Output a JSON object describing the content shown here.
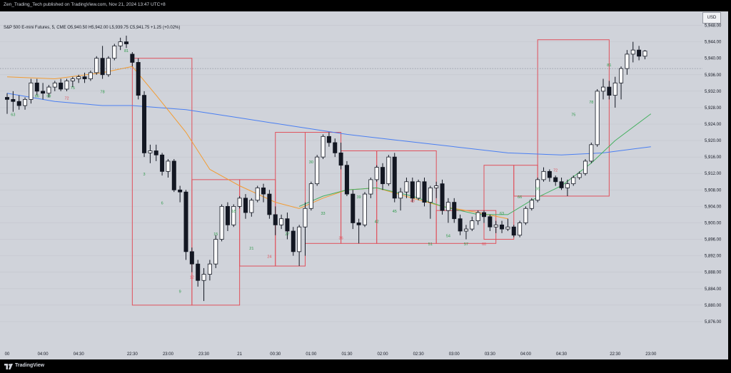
{
  "header": {
    "publisher_text": "Zen_Trading_Tech published on TradingView.com, Nov 21, 2024 13:47 UTC+8"
  },
  "legend": {
    "text": "S&P 500 E-mini Futures, 5, CME  O5,940.50  H5,942.00  L5,939.75  C5,941.75  +1.25 (+0.02%)"
  },
  "price_scale": {
    "currency": "USD"
  },
  "footer": {
    "brand": "TradingView"
  },
  "colors": {
    "background": "#d0d3da",
    "box_stroke": "#e0515c",
    "ma_orange": "#f39c32",
    "ma_green": "#45b060",
    "ma_blue": "#4a7ff2",
    "bar_number_green": "#2e9a4a",
    "bar_number_red": "#e0515c"
  },
  "chart_data": {
    "type": "candlestick",
    "symbol": "S&P 500 E-mini Futures",
    "timeframe": "5",
    "y_axis": {
      "ylim": [
        5872.0,
        5950.0
      ],
      "ticks": [
        "5,948.00",
        "5,944.00",
        "5,940.00",
        "5,936.00",
        "5,932.00",
        "5,928.00",
        "5,924.00",
        "5,920.00",
        "5,916.00",
        "5,912.00",
        "5,908.00",
        "5,904.00",
        "5,900.00",
        "5,896.00",
        "5,892.00",
        "5,888.00",
        "5,884.00",
        "5,880.00",
        "5,876.00"
      ],
      "tick_values": [
        5948,
        5944,
        5940,
        5936,
        5932,
        5928,
        5924,
        5920,
        5916,
        5912,
        5908,
        5904,
        5900,
        5896,
        5892,
        5888,
        5884,
        5880,
        5876
      ]
    },
    "x_axis": {
      "ticks": [
        {
          "label": "00",
          "i": 0
        },
        {
          "label": "04:00",
          "i": 6
        },
        {
          "label": "04:30",
          "i": 12
        },
        {
          "label": "22:30",
          "i": 21
        },
        {
          "label": "23:00",
          "i": 27
        },
        {
          "label": "23:30",
          "i": 33
        },
        {
          "label": "21",
          "i": 39
        },
        {
          "label": "00:30",
          "i": 45
        },
        {
          "label": "01:00",
          "i": 51
        },
        {
          "label": "01:30",
          "i": 57
        },
        {
          "label": "02:00",
          "i": 63
        },
        {
          "label": "02:30",
          "i": 69
        },
        {
          "label": "03:00",
          "i": 75
        },
        {
          "label": "03:30",
          "i": 81
        },
        {
          "label": "04:00",
          "i": 87
        },
        {
          "label": "04:30",
          "i": 93
        },
        {
          "label": "22:30",
          "i": 102
        },
        {
          "label": "23:00",
          "i": 108
        }
      ]
    },
    "candles": [
      [
        5930.5,
        5931.5,
        5926.5,
        5930.0
      ],
      [
        5930.0,
        5932.0,
        5927.0,
        5929.5
      ],
      [
        5929.5,
        5931.0,
        5927.5,
        5928.5
      ],
      [
        5928.5,
        5930.5,
        5927.5,
        5930.0
      ],
      [
        5930.0,
        5935.0,
        5929.0,
        5934.0
      ],
      [
        5934.0,
        5935.0,
        5931.0,
        5932.0
      ],
      [
        5932.0,
        5934.0,
        5930.0,
        5931.5
      ],
      [
        5931.5,
        5933.5,
        5930.5,
        5933.0
      ],
      [
        5933.0,
        5934.5,
        5932.0,
        5934.0
      ],
      [
        5934.0,
        5935.0,
        5932.0,
        5932.5
      ],
      [
        5932.5,
        5935.0,
        5932.0,
        5934.5
      ],
      [
        5934.5,
        5935.5,
        5933.0,
        5935.0
      ],
      [
        5935.0,
        5936.0,
        5934.0,
        5935.5
      ],
      [
        5935.5,
        5936.5,
        5934.0,
        5935.0
      ],
      [
        5935.0,
        5937.0,
        5934.5,
        5936.5
      ],
      [
        5936.5,
        5940.5,
        5936.0,
        5940.0
      ],
      [
        5940.0,
        5943.0,
        5935.0,
        5936.0
      ],
      [
        5936.0,
        5940.5,
        5935.5,
        5940.0
      ],
      [
        5940.0,
        5943.5,
        5939.5,
        5943.0
      ],
      [
        5943.0,
        5945.0,
        5942.0,
        5944.0
      ],
      [
        5944.0,
        5945.5,
        5942.5,
        5943.5
      ],
      [
        5941.0,
        5941.5,
        5938.0,
        5939.0
      ],
      [
        5939.0,
        5940.0,
        5930.0,
        5931.0
      ],
      [
        5931.0,
        5932.0,
        5916.0,
        5917.0
      ],
      [
        5917.0,
        5919.0,
        5914.5,
        5917.5
      ],
      [
        5917.5,
        5919.0,
        5915.0,
        5916.5
      ],
      [
        5916.5,
        5917.0,
        5911.5,
        5912.5
      ],
      [
        5912.5,
        5915.5,
        5911.0,
        5915.0
      ],
      [
        5915.0,
        5915.5,
        5907.5,
        5908.0
      ],
      [
        5908.0,
        5909.0,
        5905.0,
        5907.5
      ],
      [
        5907.5,
        5908.0,
        5891.0,
        5893.0
      ],
      [
        5893.0,
        5894.0,
        5888.0,
        5890.0
      ],
      [
        5890.0,
        5891.0,
        5884.5,
        5886.0
      ],
      [
        5886.0,
        5889.0,
        5881.0,
        5887.5
      ],
      [
        5887.5,
        5891.0,
        5886.0,
        5890.0
      ],
      [
        5890.0,
        5897.0,
        5889.0,
        5896.0
      ],
      [
        5896.0,
        5904.5,
        5895.5,
        5904.0
      ],
      [
        5904.0,
        5905.0,
        5898.0,
        5899.5
      ],
      [
        5899.5,
        5904.5,
        5899.0,
        5904.0
      ],
      [
        5904.0,
        5906.5,
        5903.5,
        5906.0
      ],
      [
        5906.0,
        5907.0,
        5901.0,
        5902.5
      ],
      [
        5902.5,
        5906.0,
        5901.5,
        5905.5
      ],
      [
        5905.5,
        5909.0,
        5905.0,
        5908.5
      ],
      [
        5908.5,
        5909.5,
        5905.0,
        5907.0
      ],
      [
        5907.0,
        5908.0,
        5901.0,
        5902.0
      ],
      [
        5902.0,
        5904.0,
        5897.0,
        5899.5
      ],
      [
        5899.5,
        5902.0,
        5898.5,
        5901.0
      ],
      [
        5901.0,
        5902.5,
        5896.0,
        5898.0
      ],
      [
        5898.0,
        5899.0,
        5892.0,
        5893.0
      ],
      [
        5893.0,
        5899.5,
        5889.5,
        5899.0
      ],
      [
        5899.0,
        5905.0,
        5892.0,
        5903.5
      ],
      [
        5903.5,
        5910.0,
        5903.0,
        5909.5
      ],
      [
        5909.5,
        5916.5,
        5909.0,
        5916.0
      ],
      [
        5916.0,
        5921.5,
        5915.5,
        5921.0
      ],
      [
        5921.0,
        5922.0,
        5918.5,
        5919.5
      ],
      [
        5919.5,
        5920.5,
        5916.0,
        5917.0
      ],
      [
        5917.0,
        5919.5,
        5913.0,
        5914.0
      ],
      [
        5914.0,
        5915.0,
        5906.5,
        5907.0
      ],
      [
        5907.0,
        5908.0,
        5898.5,
        5900.0
      ],
      [
        5900.0,
        5901.0,
        5895.0,
        5899.5
      ],
      [
        5899.5,
        5907.5,
        5899.0,
        5907.0
      ],
      [
        5907.0,
        5911.0,
        5906.0,
        5910.5
      ],
      [
        5910.5,
        5914.0,
        5910.0,
        5913.5
      ],
      [
        5913.5,
        5914.5,
        5908.0,
        5909.5
      ],
      [
        5909.5,
        5916.5,
        5909.0,
        5916.0
      ],
      [
        5916.0,
        5917.0,
        5905.0,
        5906.0
      ],
      [
        5906.0,
        5908.5,
        5903.0,
        5907.5
      ],
      [
        5907.5,
        5911.0,
        5906.0,
        5910.0
      ],
      [
        5910.0,
        5911.0,
        5905.0,
        5906.0
      ],
      [
        5906.0,
        5910.5,
        5905.5,
        5910.0
      ],
      [
        5910.0,
        5911.0,
        5904.0,
        5905.0
      ],
      [
        5905.0,
        5909.0,
        5901.0,
        5908.5
      ],
      [
        5908.5,
        5910.0,
        5906.0,
        5909.0
      ],
      [
        5909.5,
        5910.5,
        5902.0,
        5903.0
      ],
      [
        5903.0,
        5906.0,
        5900.0,
        5905.0
      ],
      [
        5905.0,
        5906.0,
        5900.0,
        5901.0
      ],
      [
        5901.0,
        5902.0,
        5897.0,
        5898.0
      ],
      [
        5898.0,
        5899.5,
        5896.0,
        5898.5
      ],
      [
        5898.5,
        5901.5,
        5898.0,
        5900.5
      ],
      [
        5900.5,
        5903.0,
        5899.5,
        5902.5
      ],
      [
        5902.5,
        5903.0,
        5900.0,
        5901.5
      ],
      [
        5901.5,
        5902.0,
        5898.0,
        5899.0
      ],
      [
        5899.0,
        5900.5,
        5897.5,
        5899.5
      ],
      [
        5899.5,
        5900.5,
        5897.5,
        5898.5
      ],
      [
        5898.5,
        5901.0,
        5898.0,
        5899.0
      ],
      [
        5899.0,
        5899.5,
        5896.5,
        5897.0
      ],
      [
        5897.0,
        5900.5,
        5896.5,
        5900.0
      ],
      [
        5900.0,
        5904.0,
        5899.5,
        5903.5
      ],
      [
        5903.5,
        5906.0,
        5903.0,
        5905.5
      ],
      [
        5905.5,
        5911.0,
        5905.0,
        5910.5
      ],
      [
        5910.5,
        5913.5,
        5910.0,
        5912.5
      ],
      [
        5912.5,
        5913.0,
        5910.0,
        5911.0
      ],
      [
        5911.0,
        5911.5,
        5909.0,
        5910.0
      ],
      [
        5910.0,
        5911.0,
        5908.0,
        5908.5
      ],
      [
        5908.5,
        5910.5,
        5906.5,
        5909.5
      ],
      [
        5909.5,
        5911.5,
        5909.0,
        5911.0
      ],
      [
        5911.0,
        5912.5,
        5910.5,
        5912.0
      ],
      [
        5912.0,
        5915.5,
        5911.5,
        5915.0
      ],
      [
        5915.0,
        5919.5,
        5914.5,
        5919.0
      ],
      [
        5919.0,
        5932.5,
        5918.5,
        5932.0
      ],
      [
        5932.0,
        5935.0,
        5930.0,
        5933.0
      ],
      [
        5933.0,
        5934.5,
        5930.0,
        5931.0
      ],
      [
        5931.0,
        5935.5,
        5928.0,
        5934.0
      ],
      [
        5934.0,
        5938.0,
        5930.0,
        5937.5
      ],
      [
        5937.5,
        5942.0,
        5936.0,
        5941.0
      ],
      [
        5941.0,
        5944.0,
        5939.0,
        5942.0
      ],
      [
        5942.0,
        5943.0,
        5939.5,
        5940.5
      ],
      [
        5940.5,
        5942.0,
        5939.75,
        5941.75
      ]
    ],
    "ema_fast_orange": [
      [
        0,
        5935.5
      ],
      [
        8,
        5935.0
      ],
      [
        16,
        5936.5
      ],
      [
        21,
        5938.0
      ],
      [
        25,
        5931.0
      ],
      [
        30,
        5922.0
      ],
      [
        34,
        5913.0
      ],
      [
        39,
        5909.0
      ],
      [
        45,
        5905.0
      ],
      [
        49,
        5903.5
      ],
      [
        53,
        5906.0
      ],
      [
        57,
        5908.0
      ],
      [
        62,
        5908.5
      ],
      [
        68,
        5906.0
      ],
      [
        73,
        5904.0
      ],
      [
        79,
        5902.5
      ],
      [
        84,
        5901.0
      ]
    ],
    "ema_mid_green": [
      [
        49,
        5904.0
      ],
      [
        53,
        5906.5
      ],
      [
        57,
        5908.0
      ],
      [
        62,
        5908.5
      ],
      [
        68,
        5906.5
      ],
      [
        73,
        5904.0
      ],
      [
        79,
        5902.0
      ],
      [
        84,
        5902.0
      ],
      [
        88,
        5905.5
      ],
      [
        93,
        5909.0
      ],
      [
        98,
        5914.5
      ],
      [
        102,
        5920.0
      ],
      [
        108,
        5926.5
      ]
    ],
    "ema_slow_blue": [
      [
        0,
        5931.5
      ],
      [
        8,
        5929.5
      ],
      [
        16,
        5928.5
      ],
      [
        21,
        5928.5
      ],
      [
        30,
        5927.5
      ],
      [
        39,
        5925.5
      ],
      [
        48,
        5923.5
      ],
      [
        57,
        5921.5
      ],
      [
        66,
        5920.0
      ],
      [
        75,
        5918.5
      ],
      [
        84,
        5917.0
      ],
      [
        93,
        5916.5
      ],
      [
        100,
        5917.0
      ],
      [
        108,
        5918.5
      ]
    ],
    "dotted_reference_price": 5937.5,
    "bar_counts": [
      {
        "i": 1,
        "label": "63",
        "color": "green",
        "above": false,
        "price": 5926.0
      },
      {
        "i": 5,
        "label": "66",
        "color": "green",
        "above": false,
        "price": 5930.5
      },
      {
        "i": 7,
        "label": "69",
        "color": "green",
        "above": false,
        "price": 5930.5
      },
      {
        "i": 11,
        "label": "75",
        "color": "green",
        "above": false,
        "price": 5932.5
      },
      {
        "i": 10,
        "label": "72",
        "color": "red",
        "above": false,
        "price": 5930.0
      },
      {
        "i": 16,
        "label": "78",
        "color": "green",
        "above": false,
        "price": 5931.5
      },
      {
        "i": 20,
        "label": "81",
        "color": "green",
        "above": true,
        "price": 5941.5
      },
      {
        "i": 23,
        "label": "3",
        "color": "green",
        "above": false,
        "price": 5911.5
      },
      {
        "i": 26,
        "label": "6",
        "color": "green",
        "above": false,
        "price": 5904.5
      },
      {
        "i": 29,
        "label": "9",
        "color": "green",
        "above": false,
        "price": 5883.0
      },
      {
        "i": 31,
        "label": "12",
        "color": "red",
        "above": false,
        "price": 5886.5
      },
      {
        "i": 35,
        "label": "15",
        "color": "green",
        "above": false,
        "price": 5897.0
      },
      {
        "i": 38,
        "label": "18",
        "color": "green",
        "above": false,
        "price": 5902.5
      },
      {
        "i": 41,
        "label": "21",
        "color": "green",
        "above": false,
        "price": 5893.5
      },
      {
        "i": 44,
        "label": "24",
        "color": "red",
        "above": false,
        "price": 5891.5
      },
      {
        "i": 47,
        "label": "27",
        "color": "green",
        "above": false,
        "price": 5897.0
      },
      {
        "i": 51,
        "label": "30",
        "color": "green",
        "above": false,
        "price": 5914.5
      },
      {
        "i": 53,
        "label": "33",
        "color": "green",
        "above": false,
        "price": 5902.0
      },
      {
        "i": 56,
        "label": "36",
        "color": "red",
        "above": false,
        "price": 5896.0
      },
      {
        "i": 59,
        "label": "39",
        "color": "green",
        "above": false,
        "price": 5906.0
      },
      {
        "i": 62,
        "label": "42",
        "color": "green",
        "above": false,
        "price": 5900.0
      },
      {
        "i": 65,
        "label": "45",
        "color": "green",
        "above": false,
        "price": 5902.5
      },
      {
        "i": 68,
        "label": "48",
        "color": "red",
        "above": false,
        "price": 5905.0
      },
      {
        "i": 71,
        "label": "51",
        "color": "green",
        "above": false,
        "price": 5894.5
      },
      {
        "i": 74,
        "label": "54",
        "color": "green",
        "above": false,
        "price": 5896.5
      },
      {
        "i": 77,
        "label": "57",
        "color": "green",
        "above": false,
        "price": 5894.5
      },
      {
        "i": 80,
        "label": "60",
        "color": "red",
        "above": false,
        "price": 5894.5
      },
      {
        "i": 83,
        "label": "63",
        "color": "green",
        "above": false,
        "price": 5902.0
      },
      {
        "i": 86,
        "label": "66",
        "color": "green",
        "above": false,
        "price": 5906.0
      },
      {
        "i": 89,
        "label": "69",
        "color": "green",
        "above": false,
        "price": 5908.0
      },
      {
        "i": 92,
        "label": "72",
        "color": "red",
        "above": false,
        "price": 5912.5
      },
      {
        "i": 95,
        "label": "75",
        "color": "green",
        "above": false,
        "price": 5926.0
      },
      {
        "i": 98,
        "label": "78",
        "color": "green",
        "above": false,
        "price": 5929.0
      },
      {
        "i": 101,
        "label": "81",
        "color": "green",
        "above": false,
        "price": 5938.0
      }
    ],
    "annotation_boxes": [
      {
        "i0": 21,
        "i1": 31,
        "price_top": 5940.0,
        "price_bottom": 5880.0
      },
      {
        "i0": 31,
        "i1": 39,
        "price_top": 5910.5,
        "price_bottom": 5880.0
      },
      {
        "i0": 39,
        "i1": 45,
        "price_top": 5910.5,
        "price_bottom": 5889.5
      },
      {
        "i0": 45,
        "i1": 50,
        "price_top": 5922.0,
        "price_bottom": 5889.5
      },
      {
        "i0": 50,
        "i1": 56,
        "price_top": 5922.0,
        "price_bottom": 5895.0
      },
      {
        "i0": 56,
        "i1": 62,
        "price_top": 5917.5,
        "price_bottom": 5895.0
      },
      {
        "i0": 62,
        "i1": 72,
        "price_top": 5917.5,
        "price_bottom": 5895.0
      },
      {
        "i0": 72,
        "i1": 82,
        "price_top": 5903.0,
        "price_bottom": 5895.0
      },
      {
        "i0": 80,
        "i1": 85,
        "price_top": 5914.0,
        "price_bottom": 5896.0
      },
      {
        "i0": 85,
        "i1": 89,
        "price_top": 5914.0,
        "price_bottom": 5906.5
      },
      {
        "i0": 89,
        "i1": 101,
        "price_top": 5944.5,
        "price_bottom": 5906.5
      }
    ],
    "title": "",
    "xlabel": "",
    "ylabel": ""
  }
}
